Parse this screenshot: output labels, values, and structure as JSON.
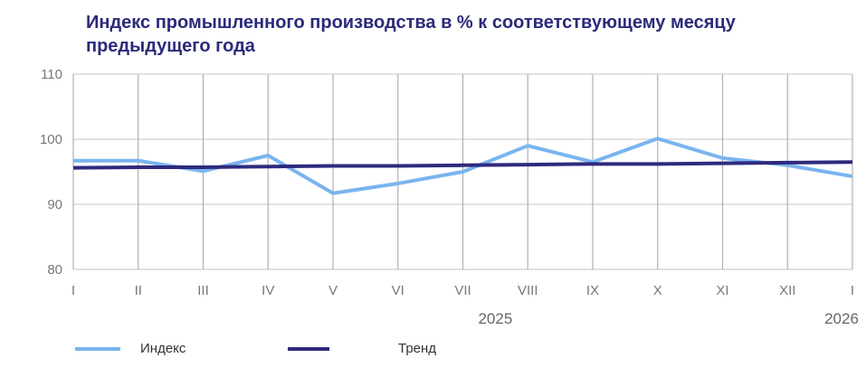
{
  "chart_data": {
    "type": "line",
    "title": "Индекс промышленного производства в % к соответствующему месяцу предыдущего года",
    "categories": [
      "I",
      "II",
      "III",
      "IV",
      "V",
      "VI",
      "VII",
      "VIII",
      "IX",
      "X",
      "XI",
      "XII",
      "I"
    ],
    "year_labels": [
      {
        "label": "2025",
        "at_index": 6.5
      },
      {
        "label": "2026",
        "at_index": 12
      }
    ],
    "ylim": [
      80,
      110
    ],
    "yticks": [
      80,
      90,
      100,
      110
    ],
    "grid": true,
    "legend_placement": "bottom",
    "series": [
      {
        "name": "Индекс",
        "color": "#7ab4ee",
        "values": [
          96.7,
          96.7,
          95.1,
          97.5,
          91.7,
          93.2,
          95.0,
          99.0,
          96.5,
          100.1,
          97.1,
          96.0,
          94.3
        ]
      },
      {
        "name": "Тренд",
        "color": "#2e2a7e",
        "values": [
          95.6,
          95.7,
          95.7,
          95.8,
          95.9,
          95.9,
          96.0,
          96.1,
          96.2,
          96.2,
          96.3,
          96.4,
          96.5
        ]
      }
    ]
  }
}
